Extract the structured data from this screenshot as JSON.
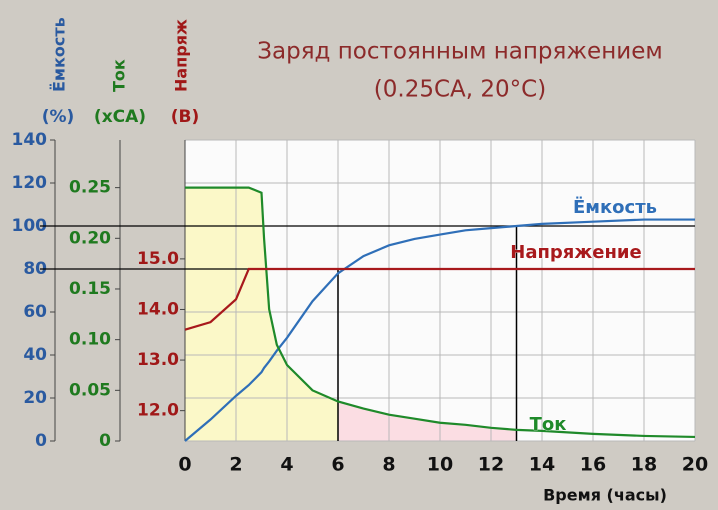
{
  "chart_data": {
    "type": "line",
    "title": "Заряд постоянным напряжением",
    "subtitle": "(0.25CA, 20°C)",
    "x_label": "Время (часы)",
    "y_label": "Ёмкость",
    "y_unit": "(%)",
    "y2_label": "Ток",
    "y2_unit": "(xCA)",
    "y3_label": "Напряж",
    "y3_unit": "(В)",
    "x": [
      0,
      1,
      2,
      2.5,
      3,
      3.1,
      3.3,
      3.6,
      4,
      5,
      6,
      7,
      8,
      9,
      10,
      11,
      12,
      13,
      14,
      16,
      18,
      20
    ],
    "xlim": [
      0,
      20
    ],
    "xticks": [
      0,
      2,
      4,
      6,
      8,
      10,
      12,
      14,
      16,
      18,
      20
    ],
    "ylim": [
      0,
      140
    ],
    "yticks": [
      0,
      20,
      40,
      60,
      80,
      100,
      120,
      140
    ],
    "y2lim": [
      0,
      0.297
    ],
    "y2ticks": [
      0,
      0.05,
      {
        "value": 0.1,
        "label": "0.10"
      },
      0.15,
      {
        "value": 0.2,
        "label": "0.20"
      },
      0.25
    ],
    "y3lim": [
      11.4,
      17.35
    ],
    "y3ticks": [
      {
        "value": 12,
        "label": "12.0"
      },
      {
        "value": 13,
        "label": "13.0"
      },
      {
        "value": 14,
        "label": "14.0"
      },
      {
        "value": 15,
        "label": "15.0"
      }
    ],
    "grid": true,
    "series": [
      {
        "name": "Ёмкость",
        "color": "#2f6fb8",
        "axis": "y",
        "values": [
          0,
          10,
          21,
          26,
          32,
          34,
          37,
          42,
          48,
          65,
          78,
          86,
          91,
          94,
          96,
          98,
          99,
          100,
          101,
          102,
          103,
          103
        ]
      },
      {
        "name": "Ток",
        "color": "#1f8a2a",
        "axis": "y2",
        "values": [
          0.25,
          0.25,
          0.25,
          0.25,
          0.245,
          0.2,
          0.13,
          0.095,
          0.075,
          0.05,
          0.039,
          0.032,
          0.026,
          0.022,
          0.018,
          0.016,
          0.013,
          0.011,
          0.01,
          0.007,
          0.005,
          0.004
        ]
      },
      {
        "name": "Напряжение",
        "color": "#a8191c",
        "axis": "y3",
        "values": [
          13.6,
          13.75,
          14.2,
          14.8,
          14.8,
          14.8,
          14.8,
          14.8,
          14.8,
          14.8,
          14.8,
          14.8,
          14.8,
          14.8,
          14.8,
          14.8,
          14.8,
          14.8,
          14.8,
          14.8,
          14.8,
          14.8
        ]
      }
    ],
    "reference_lines": {
      "x": [
        6,
        13
      ],
      "y": [
        80,
        100
      ]
    }
  }
}
